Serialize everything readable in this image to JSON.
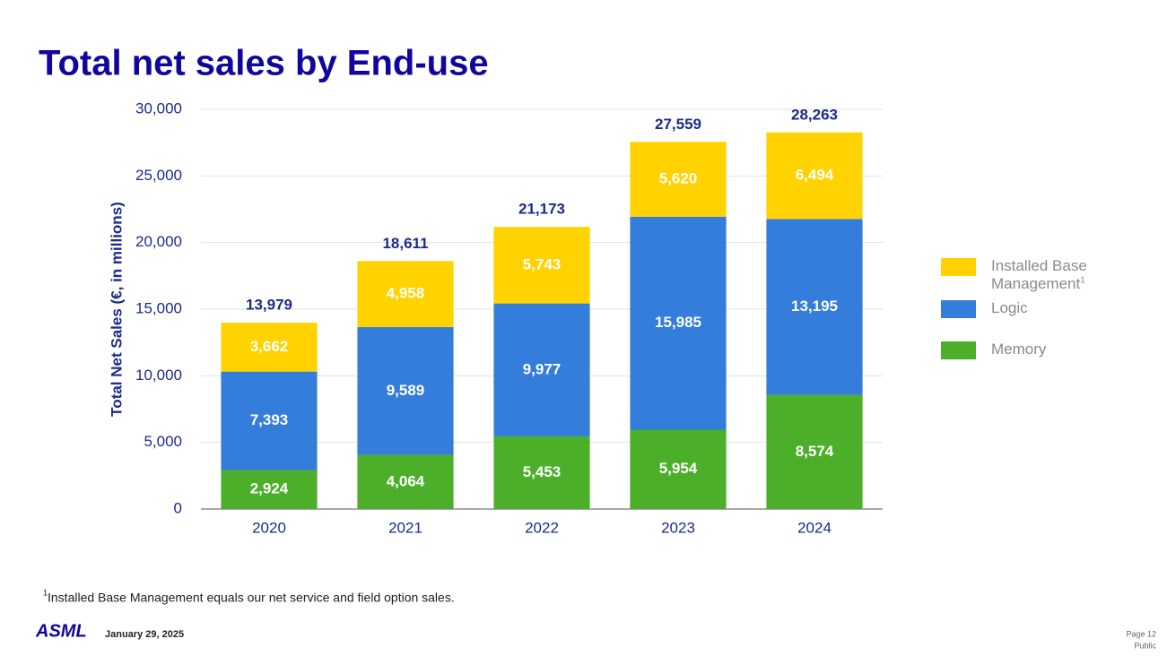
{
  "chart_data": {
    "type": "stacked_bar",
    "title": "Total net sales by End-use",
    "y_label": "Total Net Sales (€, in millions)",
    "categories": [
      "2020",
      "2021",
      "2022",
      "2023",
      "2024"
    ],
    "series": [
      {
        "name": "Memory",
        "color": "#4caf2a",
        "values": [
          2924,
          4064,
          5453,
          5954,
          8574
        ],
        "value_labels": [
          "2,924",
          "4,064",
          "5,453",
          "5,954",
          "8,574"
        ]
      },
      {
        "name": "Logic",
        "color": "#347ddb",
        "values": [
          7393,
          9589,
          9977,
          15985,
          13195
        ],
        "value_labels": [
          "7,393",
          "9,589",
          "9,977",
          "15,985",
          "13,195"
        ]
      },
      {
        "name": "Installed Base Management",
        "footnote_marker": "1",
        "color": "#ffd200",
        "values": [
          3662,
          4958,
          5743,
          5620,
          6494
        ],
        "value_labels": [
          "3,662",
          "4,958",
          "5,743",
          "5,620",
          "6,494"
        ]
      }
    ],
    "totals": {
      "values": [
        13979,
        18611,
        21173,
        27559,
        28263
      ],
      "value_labels": [
        "13,979",
        "18,611",
        "21,173",
        "27,559",
        "28,263"
      ]
    },
    "ylim": [
      0,
      30000
    ],
    "yticks": [
      0,
      {
        "value": 5000,
        "label": "5,000"
      },
      {
        "value": 10000,
        "label": "10,000"
      },
      {
        "value": 15000,
        "label": "15,000"
      },
      {
        "value": 20000,
        "label": "20,000"
      },
      {
        "value": 25000,
        "label": "25,000"
      },
      {
        "value": 30000,
        "label": "30,000"
      }
    ],
    "grid": true,
    "legend": "right",
    "footnote": {
      "marker": "1",
      "text": "Installed Base Management equals our net service and field option sales."
    }
  },
  "page": {
    "logo": "ASML",
    "date": "January 29, 2025",
    "page_number": "Page 12",
    "classification": "Public"
  }
}
